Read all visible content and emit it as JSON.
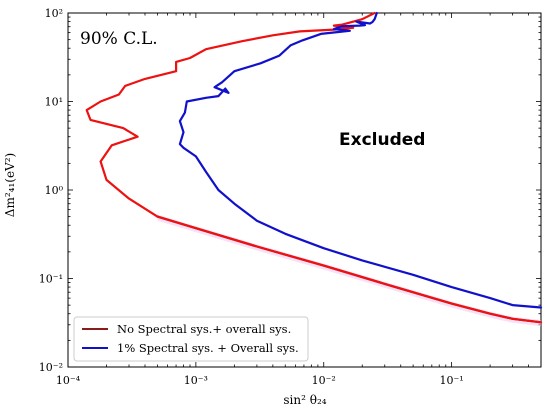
{
  "chart_data": {
    "type": "line",
    "annotation_cl": "90% C.L.",
    "annotation_excluded": "Excluded",
    "xlabel": "sin² θ₂₄",
    "ylabel": "Δm²₄₁(eV²)",
    "xscale": "log",
    "yscale": "log",
    "xlim": [
      0.0001,
      0.5
    ],
    "ylim": [
      0.01,
      100
    ],
    "xticks": [
      {
        "value": 0.0001,
        "label": "10⁻⁴"
      },
      {
        "value": 0.001,
        "label": "10⁻³"
      },
      {
        "value": 0.01,
        "label": "10⁻²"
      },
      {
        "value": 0.1,
        "label": "10⁻¹"
      }
    ],
    "yticks": [
      {
        "value": 0.01,
        "label": "10⁻²"
      },
      {
        "value": 0.1,
        "label": "10⁻¹"
      },
      {
        "value": 1,
        "label": "10⁰"
      },
      {
        "value": 10,
        "label": "10¹"
      },
      {
        "value": 100,
        "label": "10²"
      }
    ],
    "grid": false,
    "legend_position": "bottom-left",
    "series": [
      {
        "name": "No Spectral sys.+ overall sys.",
        "color": "#8b1a1a",
        "points": [
          [
            0.0005,
            0.5
          ],
          [
            0.001,
            0.37
          ],
          [
            0.003,
            0.23
          ],
          [
            0.01,
            0.14
          ],
          [
            0.03,
            0.087
          ],
          [
            0.1,
            0.052
          ],
          [
            0.2,
            0.04
          ],
          [
            0.3,
            0.035
          ],
          [
            0.5,
            0.032
          ]
        ]
      },
      {
        "name": "",
        "color": "#ee1111",
        "points": [
          [
            0.5,
            0.032
          ],
          [
            0.3,
            0.035
          ],
          [
            0.2,
            0.04
          ],
          [
            0.1,
            0.052
          ],
          [
            0.03,
            0.087
          ],
          [
            0.01,
            0.14
          ],
          [
            0.003,
            0.23
          ],
          [
            0.001,
            0.37
          ],
          [
            0.0005,
            0.5
          ],
          [
            0.0003,
            0.8
          ],
          [
            0.0002,
            1.3
          ],
          [
            0.00018,
            2.1
          ],
          [
            0.00022,
            3.2
          ],
          [
            0.00035,
            4.0
          ],
          [
            0.00027,
            5.0
          ],
          [
            0.00015,
            6.2
          ],
          [
            0.00014,
            8.0
          ],
          [
            0.00018,
            10
          ],
          [
            0.00025,
            12
          ],
          [
            0.00028,
            15
          ],
          [
            0.0004,
            18
          ],
          [
            0.0007,
            22
          ],
          [
            0.0007,
            28
          ],
          [
            0.0009,
            31
          ],
          [
            0.0012,
            39
          ],
          [
            0.0023,
            48
          ],
          [
            0.004,
            56
          ],
          [
            0.0065,
            62
          ],
          [
            0.012,
            65
          ],
          [
            0.017,
            68
          ],
          [
            0.012,
            72
          ],
          [
            0.014,
            74
          ],
          [
            0.02,
            85
          ],
          [
            0.025,
            100
          ]
        ]
      },
      {
        "name": "1% Spectral sys. + Overall sys.",
        "color": "#1111cc",
        "points": [
          [
            0.5,
            0.047
          ],
          [
            0.3,
            0.05
          ],
          [
            0.2,
            0.06
          ],
          [
            0.1,
            0.08
          ],
          [
            0.05,
            0.11
          ],
          [
            0.02,
            0.16
          ],
          [
            0.01,
            0.22
          ],
          [
            0.005,
            0.32
          ],
          [
            0.003,
            0.45
          ],
          [
            0.002,
            0.7
          ],
          [
            0.0015,
            1.0
          ],
          [
            0.0012,
            1.6
          ],
          [
            0.001,
            2.4
          ],
          [
            0.0008,
            3.0
          ],
          [
            0.00075,
            3.3
          ],
          [
            0.0008,
            4.5
          ],
          [
            0.00075,
            6.0
          ],
          [
            0.00082,
            7.5
          ],
          [
            0.00085,
            10
          ],
          [
            0.0012,
            11
          ],
          [
            0.0015,
            11.5
          ],
          [
            0.0017,
            14
          ],
          [
            0.0018,
            12.5
          ],
          [
            0.0014,
            14.5
          ],
          [
            0.0016,
            16.5
          ],
          [
            0.002,
            22
          ],
          [
            0.0032,
            27
          ],
          [
            0.0045,
            33
          ],
          [
            0.0055,
            43
          ],
          [
            0.0068,
            49
          ],
          [
            0.0095,
            58
          ],
          [
            0.013,
            61
          ],
          [
            0.016,
            63
          ],
          [
            0.012,
            66
          ],
          [
            0.014,
            71
          ],
          [
            0.019,
            72
          ],
          [
            0.021,
            73
          ],
          [
            0.018,
            80
          ],
          [
            0.023,
            76
          ],
          [
            0.024,
            79
          ],
          [
            0.025,
            85
          ],
          [
            0.026,
            100
          ]
        ]
      }
    ]
  }
}
